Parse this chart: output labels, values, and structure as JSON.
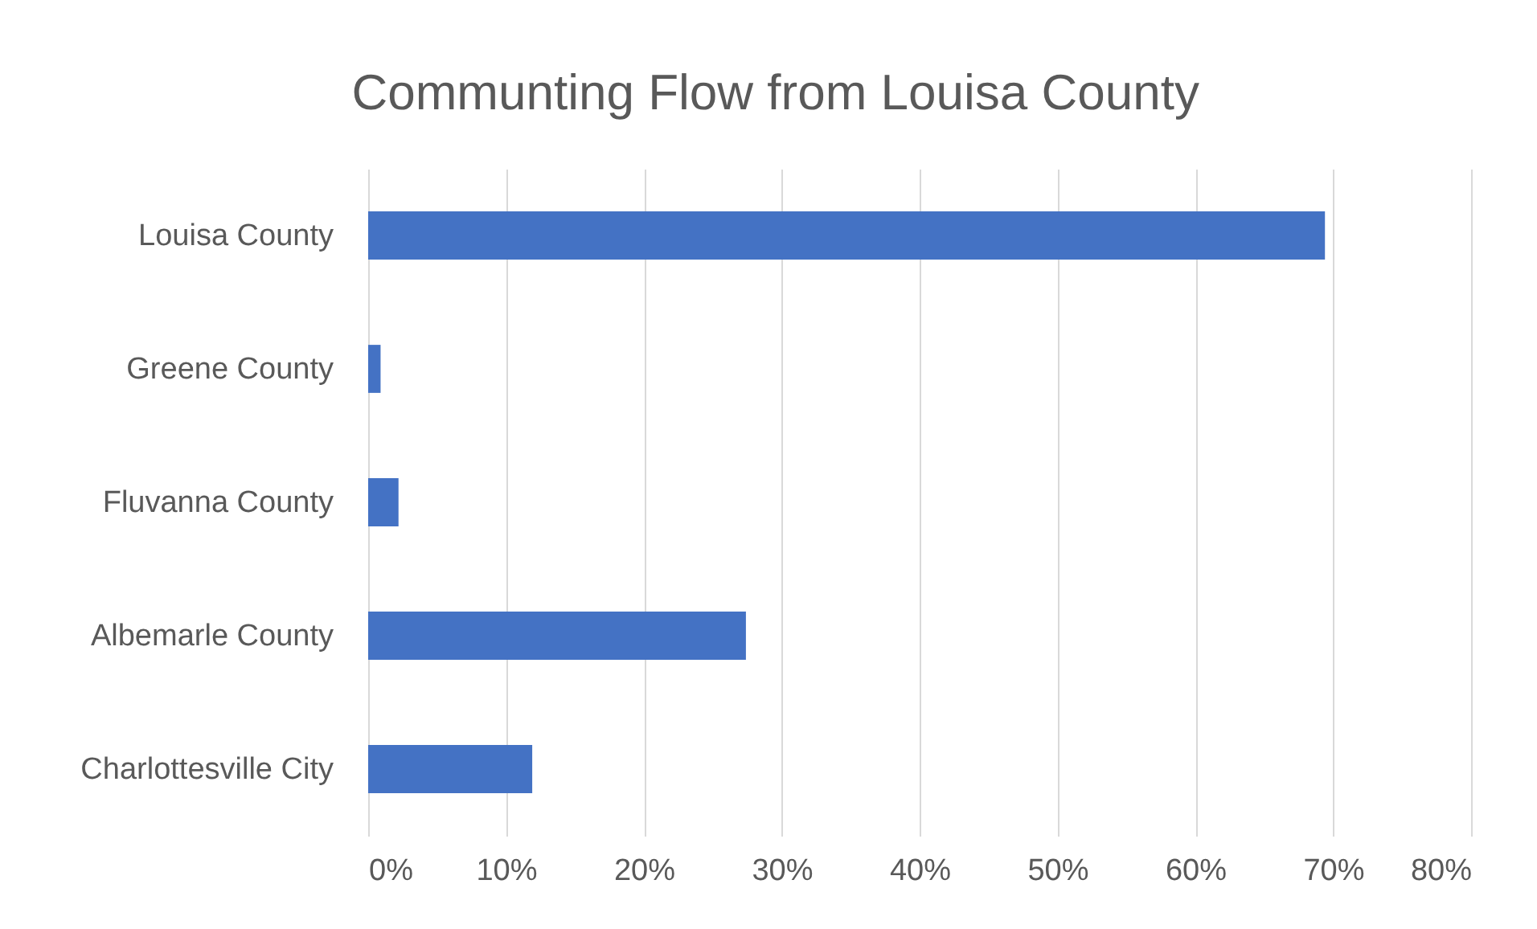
{
  "chart_data": {
    "type": "bar",
    "orientation": "horizontal",
    "title": "Communting Flow from Louisa  County",
    "categories": [
      "Louisa County",
      "Greene County",
      "Fluvanna County",
      "Albemarle County",
      "Charlottesville City"
    ],
    "values": [
      69.4,
      0.9,
      2.2,
      27.4,
      11.9
    ],
    "color": "#4472c4",
    "xlim": [
      0,
      80
    ],
    "xticks": [
      {
        "value": 0,
        "label": "0%"
      },
      {
        "value": 10,
        "label": "10%"
      },
      {
        "value": 20,
        "label": "20%"
      },
      {
        "value": 30,
        "label": "30%"
      },
      {
        "value": 40,
        "label": "40%"
      },
      {
        "value": 50,
        "label": "50%"
      },
      {
        "value": 60,
        "label": "60%"
      },
      {
        "value": 70,
        "label": "70%"
      },
      {
        "value": 80,
        "label": "80%"
      }
    ],
    "grid": "x"
  }
}
